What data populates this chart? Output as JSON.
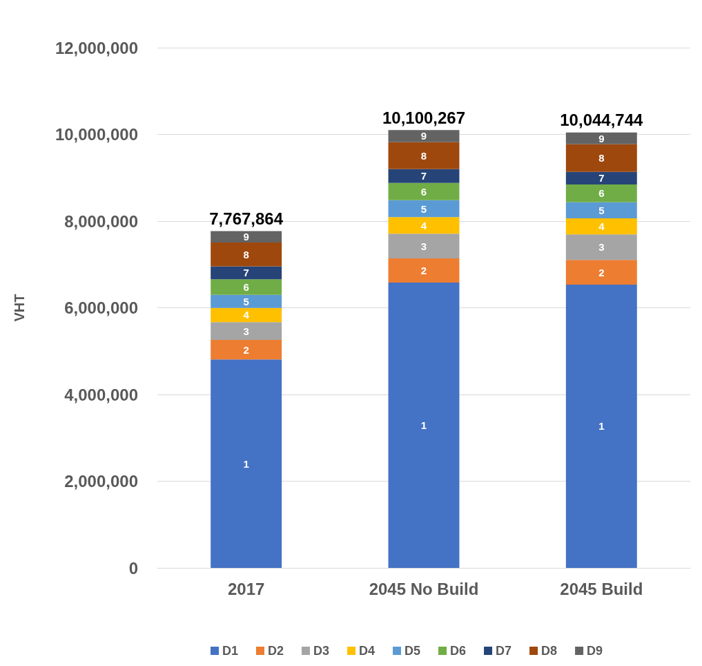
{
  "chart_data": {
    "type": "bar",
    "stacked": true,
    "ylabel": "VHT",
    "categories": [
      "2017",
      "2045 No Build",
      "2045 Build"
    ],
    "series": [
      {
        "name": "D1",
        "color": "#4472c4",
        "values": [
          4807864,
          6580267,
          6534744
        ]
      },
      {
        "name": "D2",
        "color": "#ed7d31",
        "values": [
          450000,
          560000,
          570000
        ]
      },
      {
        "name": "D3",
        "color": "#a5a5a5",
        "values": [
          410000,
          570000,
          590000
        ]
      },
      {
        "name": "D4",
        "color": "#ffc000",
        "values": [
          330000,
          380000,
          370000
        ]
      },
      {
        "name": "D5",
        "color": "#5b9bd5",
        "values": [
          300000,
          390000,
          370000
        ]
      },
      {
        "name": "D6",
        "color": "#70ad47",
        "values": [
          360000,
          400000,
          410000
        ]
      },
      {
        "name": "D7",
        "color": "#264478",
        "values": [
          300000,
          320000,
          290000
        ]
      },
      {
        "name": "D8",
        "color": "#9e480e",
        "values": [
          550000,
          620000,
          640000
        ]
      },
      {
        "name": "D9",
        "color": "#636363",
        "values": [
          260000,
          280000,
          270000
        ]
      }
    ],
    "annotations": [
      "1",
      "2",
      "3",
      "4",
      "5",
      "6",
      "7",
      "8",
      "9",
      "1",
      "2",
      "3",
      "4",
      "5",
      "6",
      "7",
      "8",
      "9",
      "1",
      "2",
      "3",
      "4",
      "5",
      "6",
      "7",
      "8",
      "9"
    ],
    "totals": [
      "7,767,864",
      "10,100,267",
      "10,044,744"
    ],
    "ylim": [
      0,
      12000000
    ],
    "yticks": [
      0,
      {
        "value": 2000000,
        "label": "2,000,000"
      },
      {
        "value": 4000000,
        "label": "4,000,000"
      },
      {
        "value": 6000000,
        "label": "6,000,000"
      },
      {
        "value": 8000000,
        "label": "8,000,000"
      },
      {
        "value": 10000000,
        "label": "10,000,000"
      },
      {
        "value": 12000000,
        "label": "12,000,000"
      }
    ],
    "grid": "y",
    "legend": "bottom"
  }
}
